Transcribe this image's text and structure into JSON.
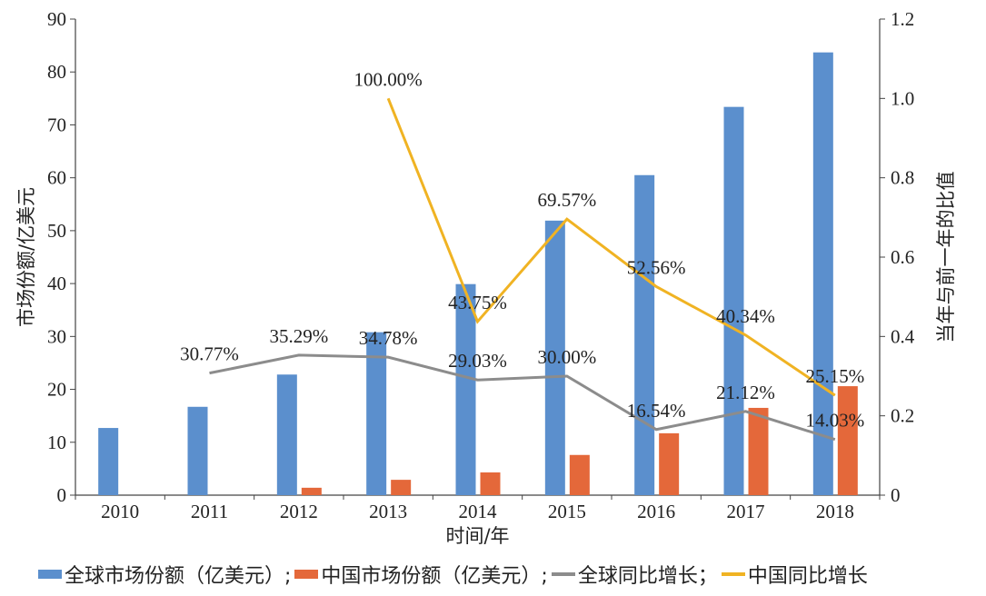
{
  "chart_data": {
    "type": "bar+line",
    "categories": [
      "2010",
      "2011",
      "2012",
      "2013",
      "2014",
      "2015",
      "2016",
      "2017",
      "2018"
    ],
    "xlabel": "时间/年",
    "ylabel_left": "市场份额/亿美元",
    "ylabel_right": "当年与前一年的比值",
    "ylim_left": [
      0,
      90
    ],
    "yticks_left": [
      0,
      10,
      20,
      30,
      40,
      50,
      60,
      70,
      80,
      90
    ],
    "ylim_right": [
      0,
      1.2
    ],
    "yticks_right": [
      "0",
      "0.2",
      "0.4",
      "0.6",
      "0.8",
      "1.0",
      "1.2"
    ],
    "grid": false,
    "legend_position": "bottom",
    "series": [
      {
        "name": "全球市场份额（亿美元）;",
        "kind": "bar",
        "axis": "left",
        "color": "#5b8fcd",
        "values": [
          12.7,
          16.7,
          22.8,
          30.8,
          39.9,
          51.9,
          60.5,
          73.4,
          83.7
        ]
      },
      {
        "name": "中国市场份额（亿美元）;",
        "kind": "bar",
        "axis": "left",
        "color": "#e4683a",
        "values": [
          null,
          null,
          1.4,
          2.9,
          4.3,
          7.6,
          11.7,
          16.5,
          20.6
        ]
      },
      {
        "name": "全球同比增长；",
        "kind": "line",
        "axis": "right",
        "color": "#8c8c8c",
        "values": [
          null,
          0.3077,
          0.3529,
          0.3478,
          0.2903,
          0.3,
          0.1654,
          0.2112,
          0.1403
        ],
        "labels": [
          null,
          "30.77%",
          "35.29%",
          "34.78%",
          "29.03%",
          "30.00%",
          "16.54%",
          "21.12%",
          "14.03%"
        ]
      },
      {
        "name": "中国同比增长",
        "kind": "line",
        "axis": "right",
        "color": "#f0b323",
        "values": [
          null,
          null,
          null,
          1.0,
          0.4375,
          0.6957,
          0.5256,
          0.4034,
          0.2515
        ],
        "labels": [
          null,
          null,
          null,
          "100.00%",
          "43.75%",
          "69.57%",
          "52.56%",
          "40.34%",
          "25.15%"
        ]
      }
    ]
  }
}
